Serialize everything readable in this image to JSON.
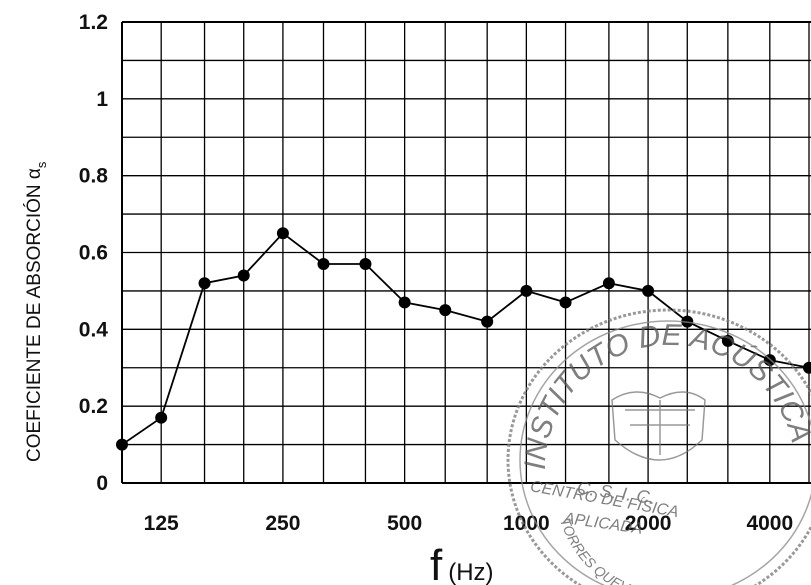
{
  "chart_data": {
    "type": "line",
    "ylabel": "COEFICIENTE DE ABSORCIÓN α",
    "ylabel_subscript": "s",
    "xlabel_main": "f",
    "xlabel_unit": "(Hz)",
    "ylim": [
      0,
      1.2
    ],
    "yticks": [
      "0",
      "0.2",
      "0.4",
      "0.6",
      "0.8",
      "1",
      "1.2"
    ],
    "xticks": [
      "125",
      "250",
      "500",
      "1000",
      "2000",
      "4000"
    ],
    "grid": true,
    "x": [
      100,
      125,
      160,
      200,
      250,
      315,
      400,
      500,
      630,
      800,
      1000,
      1250,
      1600,
      2000,
      2500,
      3150,
      4000,
      5000
    ],
    "series": [
      {
        "values": [
          0.1,
          0.17,
          0.52,
          0.54,
          0.65,
          0.57,
          0.57,
          0.47,
          0.45,
          0.42,
          0.5,
          0.47,
          0.52,
          0.5,
          0.42,
          0.37,
          0.32,
          0.3
        ]
      }
    ],
    "color": "#000000"
  },
  "stamp": {
    "top_text": "INSTITUTO DE ACÚSTICA",
    "line1": "C. S. I. C.",
    "line2": "CENTRO DE FÍSICA",
    "line3": "APLICADA",
    "bottom_text": "TORRES QUEVEDO"
  }
}
